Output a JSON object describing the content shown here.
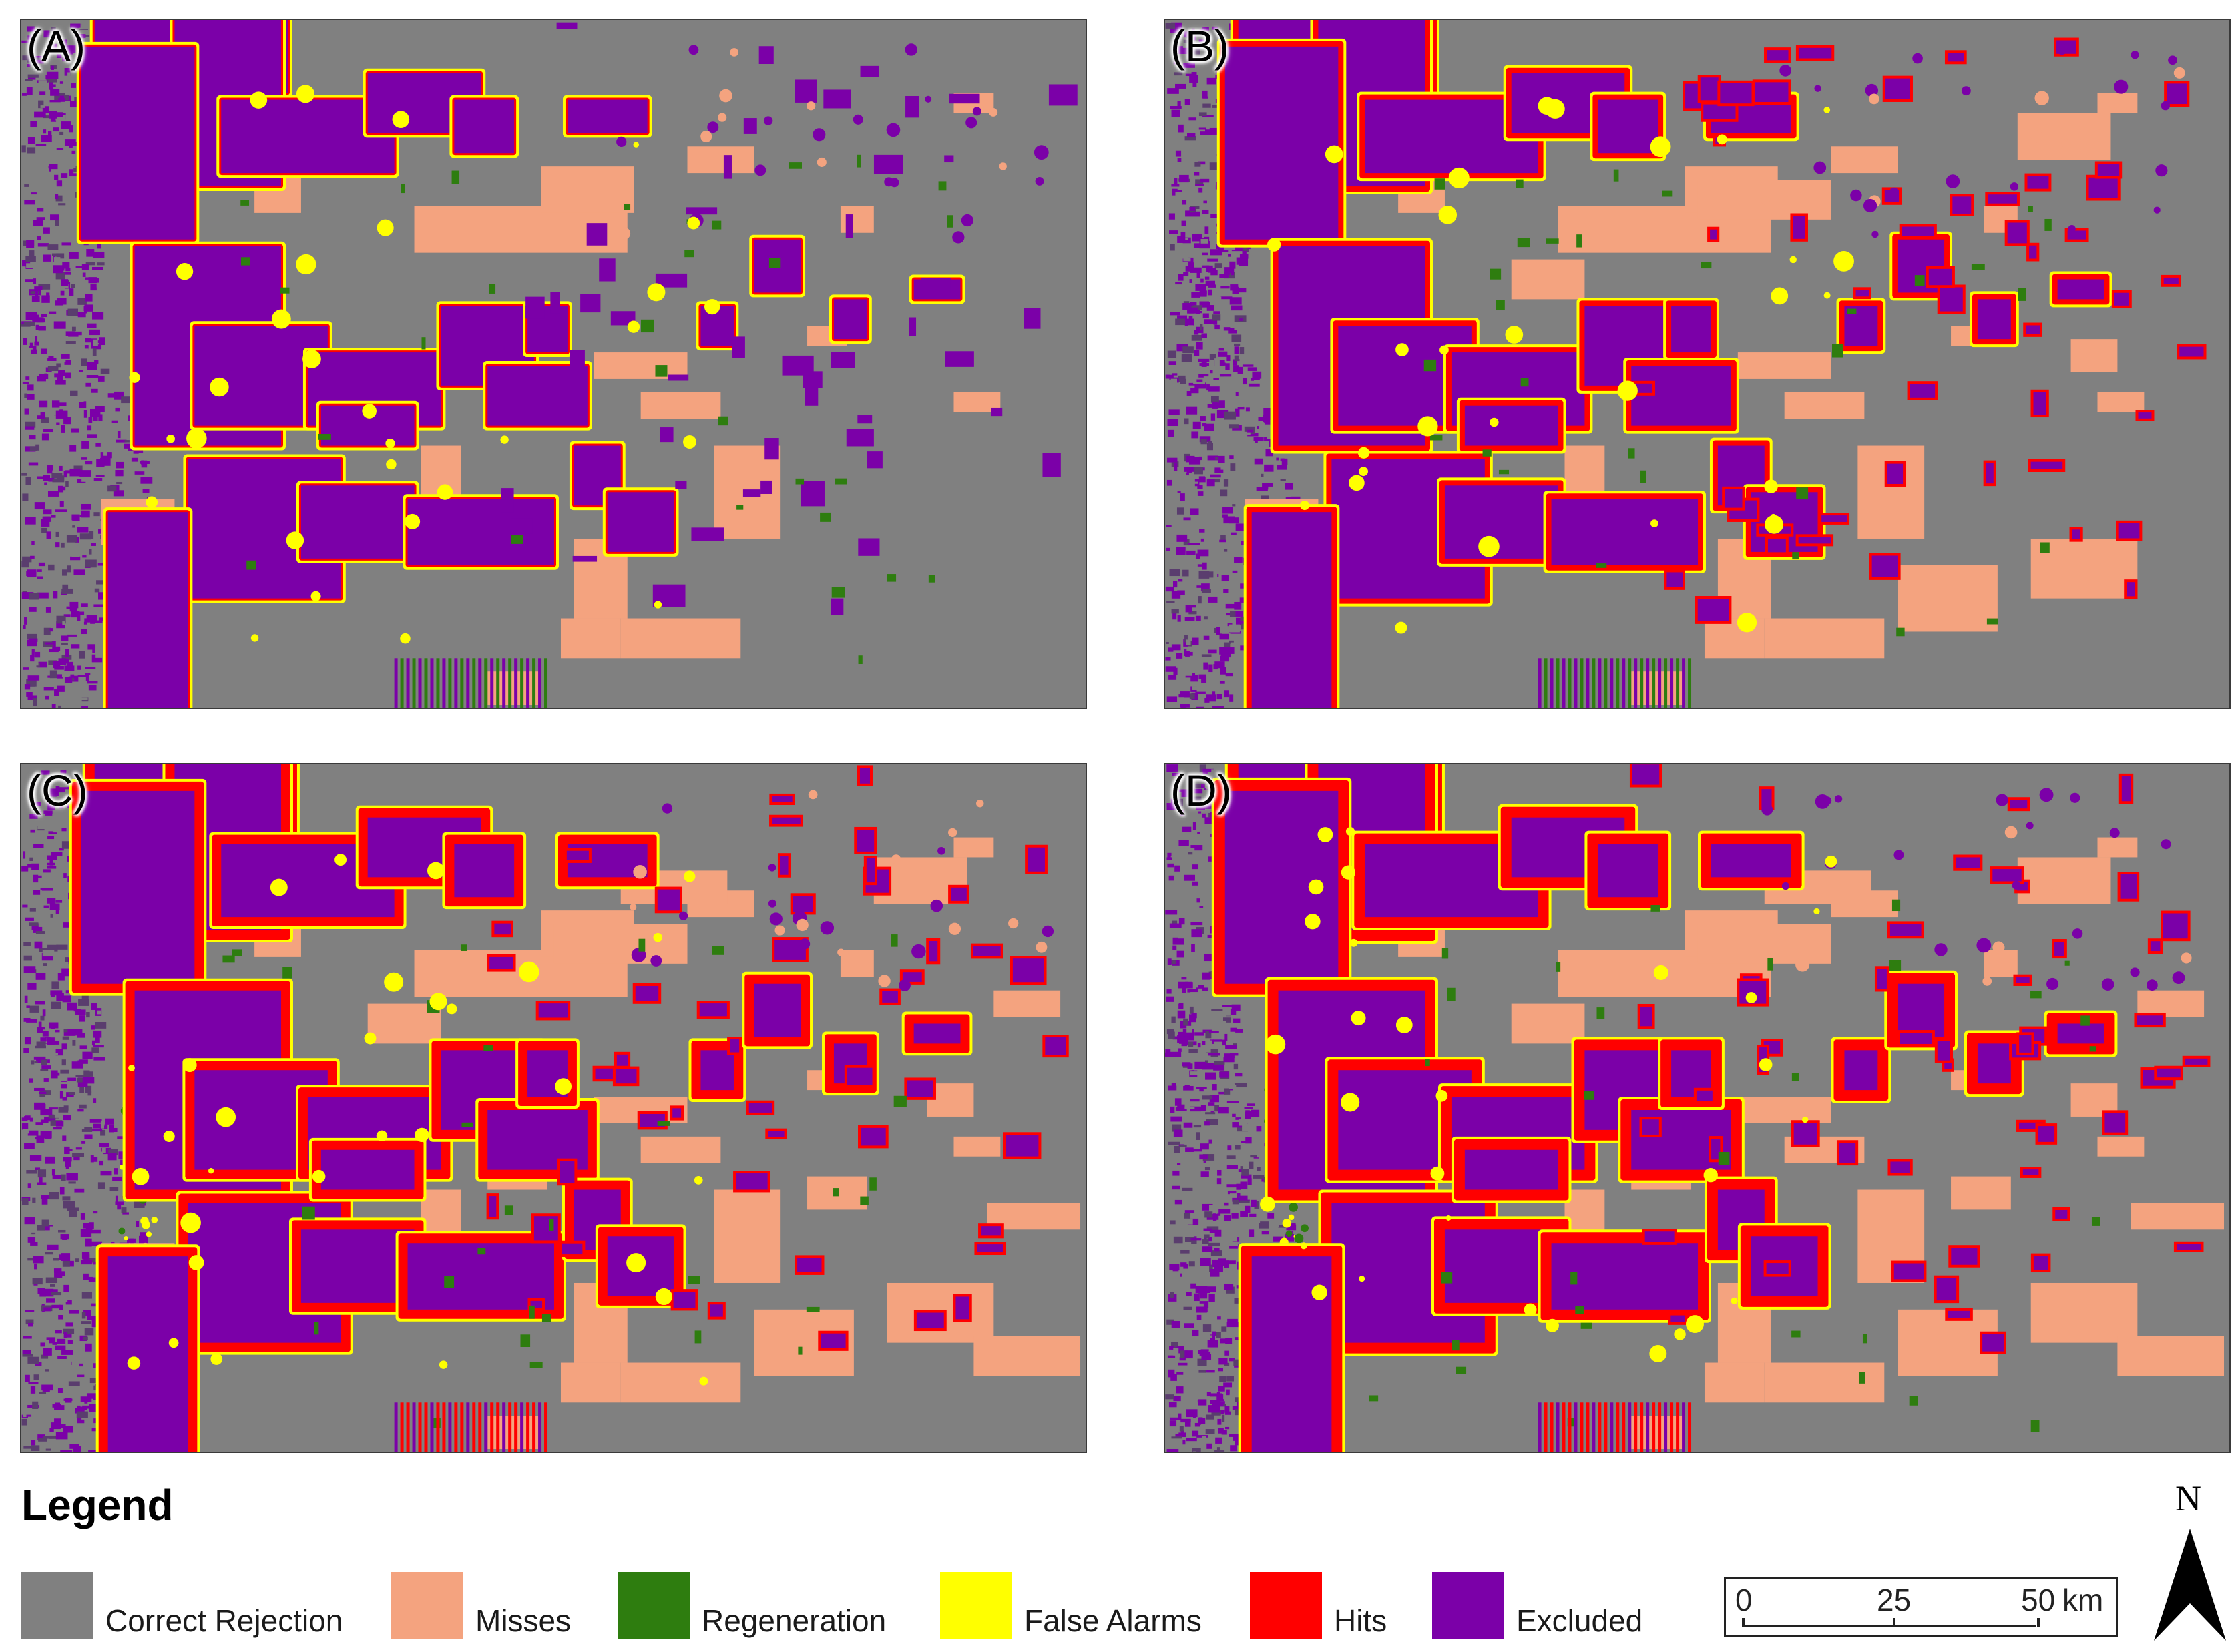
{
  "panels": [
    {
      "label": "(A)"
    },
    {
      "label": "(B)"
    },
    {
      "label": "(C)"
    },
    {
      "label": "(D)"
    }
  ],
  "legend": {
    "title": "Legend",
    "items": [
      {
        "label": "Correct Rejection",
        "color": "#808080"
      },
      {
        "label": "Misses",
        "color": "#f4a37f"
      },
      {
        "label": "Regeneration",
        "color": "#2e7d0f"
      },
      {
        "label": "False Alarms",
        "color": "#ffff00"
      },
      {
        "label": "Hits",
        "color": "#ff0000"
      },
      {
        "label": "Excluded",
        "color": "#7b00a8"
      }
    ]
  },
  "scale_bar": {
    "ticks": [
      "0",
      "25",
      "50"
    ],
    "unit": "km"
  },
  "north_arrow": {
    "label": "N"
  }
}
